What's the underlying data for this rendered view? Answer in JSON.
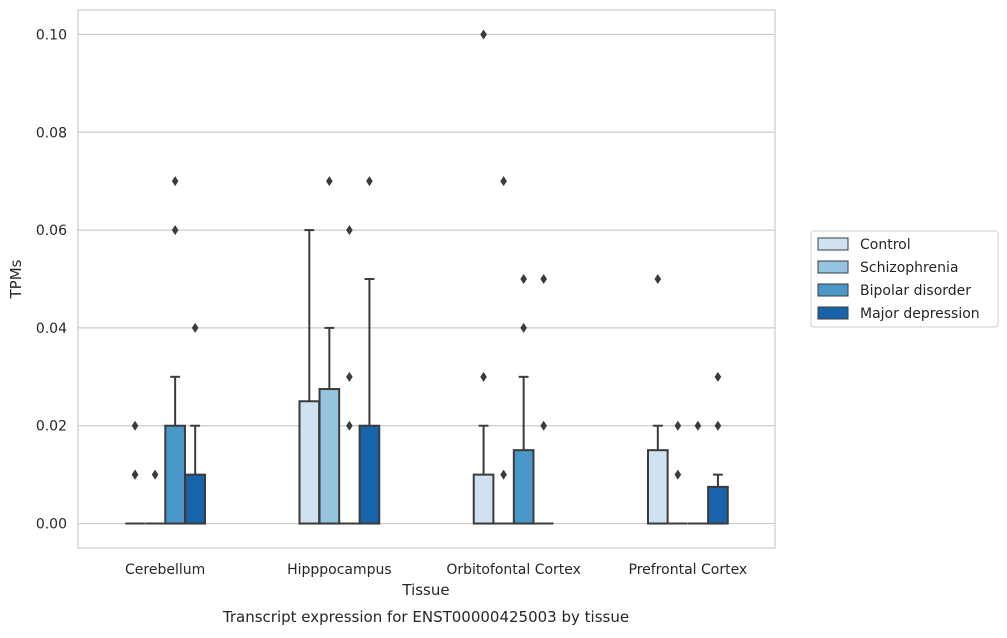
{
  "chart_data": {
    "type": "boxplot",
    "xlabel": "Tissue",
    "ylabel": "TPMs",
    "caption": "Transcript expression for ENST00000425003 by tissue",
    "categories": [
      "Cerebellum",
      "Hipppocampus",
      "Orbitofontal Cortex",
      "Prefrontal Cortex"
    ],
    "ylim": [
      -0.005,
      0.105
    ],
    "yticks": [
      0.0,
      0.02,
      0.04,
      0.06,
      0.08,
      0.1
    ],
    "ytick_labels": [
      "0.00",
      "0.02",
      "0.04",
      "0.06",
      "0.08",
      "0.10"
    ],
    "grid": true,
    "legend_position": "right",
    "series": [
      {
        "name": "Control",
        "color": "#d0e1f2",
        "boxes": [
          {
            "q1": 0,
            "median": 0,
            "q3": 0,
            "whislo": 0,
            "whishi": 0,
            "fliers": [
              0.01,
              0.01,
              0.02
            ]
          },
          {
            "q1": 0,
            "median": 0,
            "q3": 0.025,
            "whislo": 0,
            "whishi": 0.06,
            "fliers": []
          },
          {
            "q1": 0,
            "median": 0,
            "q3": 0.01,
            "whislo": 0,
            "whishi": 0.02,
            "fliers": [
              0.03,
              0.1
            ]
          },
          {
            "q1": 0,
            "median": 0,
            "q3": 0.015,
            "whislo": 0,
            "whishi": 0.02,
            "fliers": [
              0.05
            ]
          }
        ]
      },
      {
        "name": "Schizophrenia",
        "color": "#94c4df",
        "boxes": [
          {
            "q1": 0,
            "median": 0,
            "q3": 0,
            "whislo": 0,
            "whishi": 0,
            "fliers": [
              0.01
            ]
          },
          {
            "q1": 0,
            "median": 0,
            "q3": 0.0275,
            "whislo": 0,
            "whishi": 0.04,
            "fliers": [
              0.07
            ]
          },
          {
            "q1": 0,
            "median": 0,
            "q3": 0,
            "whislo": 0,
            "whishi": 0,
            "fliers": [
              0.01,
              0.07
            ]
          },
          {
            "q1": 0,
            "median": 0,
            "q3": 0,
            "whislo": 0,
            "whishi": 0,
            "fliers": [
              0.01,
              0.02
            ]
          }
        ]
      },
      {
        "name": "Bipolar disorder",
        "color": "#4a98c9",
        "boxes": [
          {
            "q1": 0,
            "median": 0,
            "q3": 0.02,
            "whislo": 0,
            "whishi": 0.03,
            "fliers": [
              0.06,
              0.07
            ]
          },
          {
            "q1": 0,
            "median": 0,
            "q3": 0,
            "whislo": 0,
            "whishi": 0,
            "fliers": [
              0.02,
              0.03,
              0.06
            ]
          },
          {
            "q1": 0,
            "median": 0,
            "q3": 0.015,
            "whislo": 0,
            "whishi": 0.03,
            "fliers": [
              0.04,
              0.05
            ]
          },
          {
            "q1": 0,
            "median": 0,
            "q3": 0,
            "whislo": 0,
            "whishi": 0,
            "fliers": [
              0.02
            ]
          }
        ]
      },
      {
        "name": "Major depression",
        "color": "#1764ab",
        "boxes": [
          {
            "q1": 0,
            "median": 0,
            "q3": 0.01,
            "whislo": 0,
            "whishi": 0.02,
            "fliers": [
              0.04
            ]
          },
          {
            "q1": 0,
            "median": 0,
            "q3": 0.02,
            "whislo": 0,
            "whishi": 0.05,
            "fliers": [
              0.07
            ]
          },
          {
            "q1": 0,
            "median": 0,
            "q3": 0,
            "whislo": 0,
            "whishi": 0,
            "fliers": [
              0.02,
              0.05
            ]
          },
          {
            "q1": 0,
            "median": 0,
            "q3": 0.0075,
            "whislo": 0,
            "whishi": 0.01,
            "fliers": [
              0.02,
              0.03
            ]
          }
        ]
      }
    ]
  }
}
